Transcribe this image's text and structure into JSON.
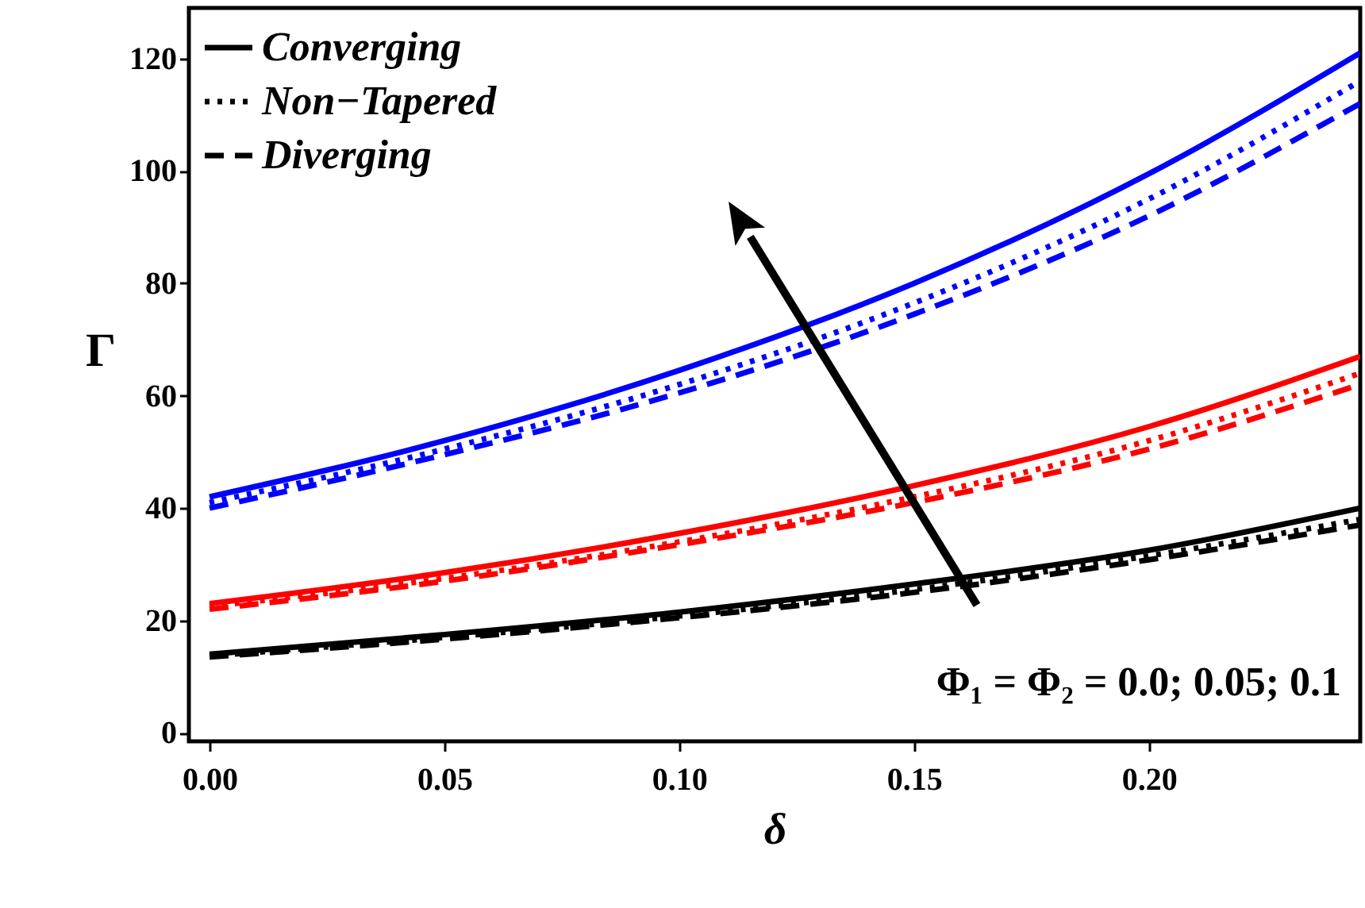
{
  "chart_data": {
    "type": "line",
    "xlabel": "δ",
    "ylabel": "Γ",
    "x": [
      0,
      0.05,
      0.1,
      0.15,
      0.2,
      0.245
    ],
    "xlim": [
      -0.0044,
      0.245
    ],
    "xticks": [
      {
        "value": 0,
        "label": "0.00"
      },
      0.05,
      {
        "value": 0.1,
        "label": "0.10"
      },
      0.15,
      {
        "value": 0.2,
        "label": "0.20"
      }
    ],
    "ylim": [
      -1.5,
      129
    ],
    "yticks": [
      0,
      20,
      40,
      60,
      80,
      100,
      120
    ],
    "legend": "top left",
    "grid": false,
    "series": [
      {
        "name": "Converging",
        "color": "#000000",
        "line_style": "solid",
        "values": [
          14,
          17.5,
          21.5,
          26.5,
          32.5,
          40
        ]
      },
      {
        "name": "Non−Tapered",
        "color": "#000000",
        "line_style": "dotted",
        "values": [
          13.7,
          17,
          20.8,
          25.5,
          31.5,
          38
        ]
      },
      {
        "name": "Diverging",
        "color": "#000000",
        "line_style": "dashed",
        "values": [
          13.5,
          16.7,
          20.5,
          25,
          30.8,
          37
        ]
      },
      {
        "color": "#ff0000",
        "line_style": "solid",
        "values": [
          23,
          28.5,
          35.5,
          44,
          54.5,
          67
        ]
      },
      {
        "color": "#ff0000",
        "line_style": "dotted",
        "values": [
          22.5,
          27.5,
          34,
          42,
          52,
          64
        ]
      },
      {
        "color": "#ff0000",
        "line_style": "dashed",
        "values": [
          22,
          27,
          33.5,
          41,
          50.5,
          62
        ]
      },
      {
        "color": "#0000ff",
        "line_style": "solid",
        "values": [
          42,
          52,
          64.5,
          80,
          99.5,
          121
        ]
      },
      {
        "color": "#0000ff",
        "line_style": "dotted",
        "values": [
          41,
          50.5,
          62,
          76.5,
          95,
          116
        ]
      },
      {
        "color": "#0000ff",
        "line_style": "dashed",
        "values": [
          40,
          49.5,
          60.5,
          74.5,
          92,
          112
        ]
      }
    ],
    "annotations": [
      "Φ₁ = Φ₂ = 0.0; 0.05; 0.1"
    ]
  }
}
